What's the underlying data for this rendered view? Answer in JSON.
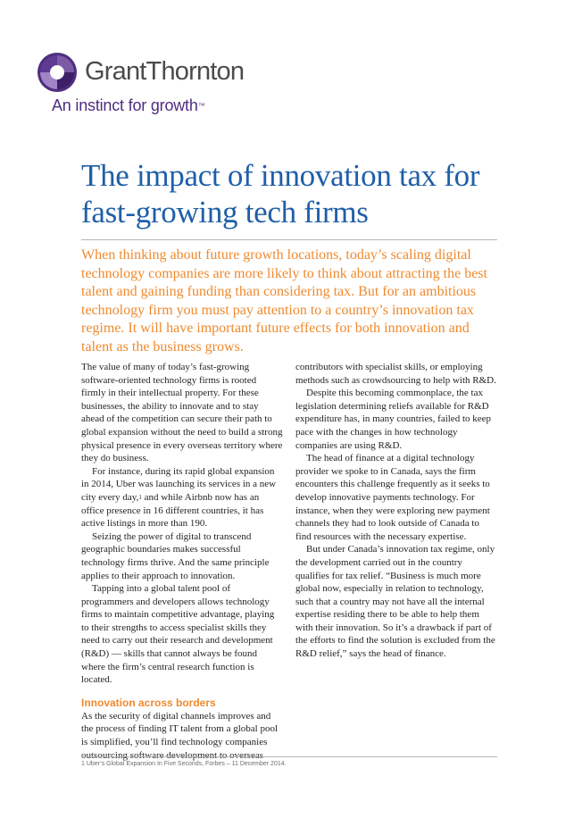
{
  "logo": {
    "name": "GrantThornton",
    "tagline": "An instinct for growth",
    "trademark": "™",
    "colors": {
      "purple": "#4f2d7f",
      "gray": "#4b4b4d"
    }
  },
  "title": "The impact of innovation tax for fast-growing tech firms",
  "lead": "When thinking about future growth locations, today’s scaling digital technology companies are more likely to think about attracting the best talent and gaining funding than considering tax. But for an ambitious technology firm you must pay attention to a country’s innovation tax regime. It will have important future effects for both innovation and talent as the business grows.",
  "body": {
    "p1": "The value of many of today’s fast-growing software-oriented technology firms is rooted firmly in their intellectual property. For these businesses, the ability to innovate and to stay ahead of the competition can secure their path to global expansion without the need to build a strong physical presence in every overseas territory where they do business.",
    "p2_before": "For instance, during its rapid global expansion in 2014, Uber was launching its services in a new city every day,",
    "p2_ref": "1",
    "p2_after": " and while Airbnb now has an office presence in 16 different countries, it has active listings in more than 190.",
    "p3": "Seizing the power of digital to transcend geographic boundaries makes successful technology firms thrive. And the same principle applies to their approach to innovation.",
    "p4": "Tapping into a global talent pool of programmers and developers allows technology firms to maintain competitive advantage, playing to their strengths to access specialist skills they need to carry out their research and development (R&D) — skills that cannot always be found where the firm’s central research function is located.",
    "section_heading": "Innovation across borders",
    "p5": "As the security of digital channels improves and the process of finding IT talent from a global pool is simplified, you’ll find technology companies outsourcing software development to overseas",
    "p5_cont": "contributors with specialist skills, or employing methods such as crowdsourcing to help with R&D.",
    "p6": "Despite this becoming commonplace, the tax legislation determining reliefs available for R&D expenditure has, in many countries, failed to keep pace with the changes in how technology companies are using R&D.",
    "p7": "The head of finance at a digital technology provider we spoke to in Canada, says the firm encounters this challenge frequently as it seeks to develop innovative payments technology. For instance, when they were exploring new payment channels they had to look outside of Canada to find resources with the necessary expertise.",
    "p8": "But under Canada’s innovation tax regime, only the development carried out in the country qualifies for tax relief. “Business is much more global now, especially in relation to technology, such that a country may not have all the internal expertise residing there to be able to help them with their innovation. So it’s a drawback if part of the efforts to find the solution is excluded from the R&D relief,” says the head of finance."
  },
  "footnote": "1 Uber’s Global Expansion In Five Seconds, Forbes – 11 December 2014."
}
